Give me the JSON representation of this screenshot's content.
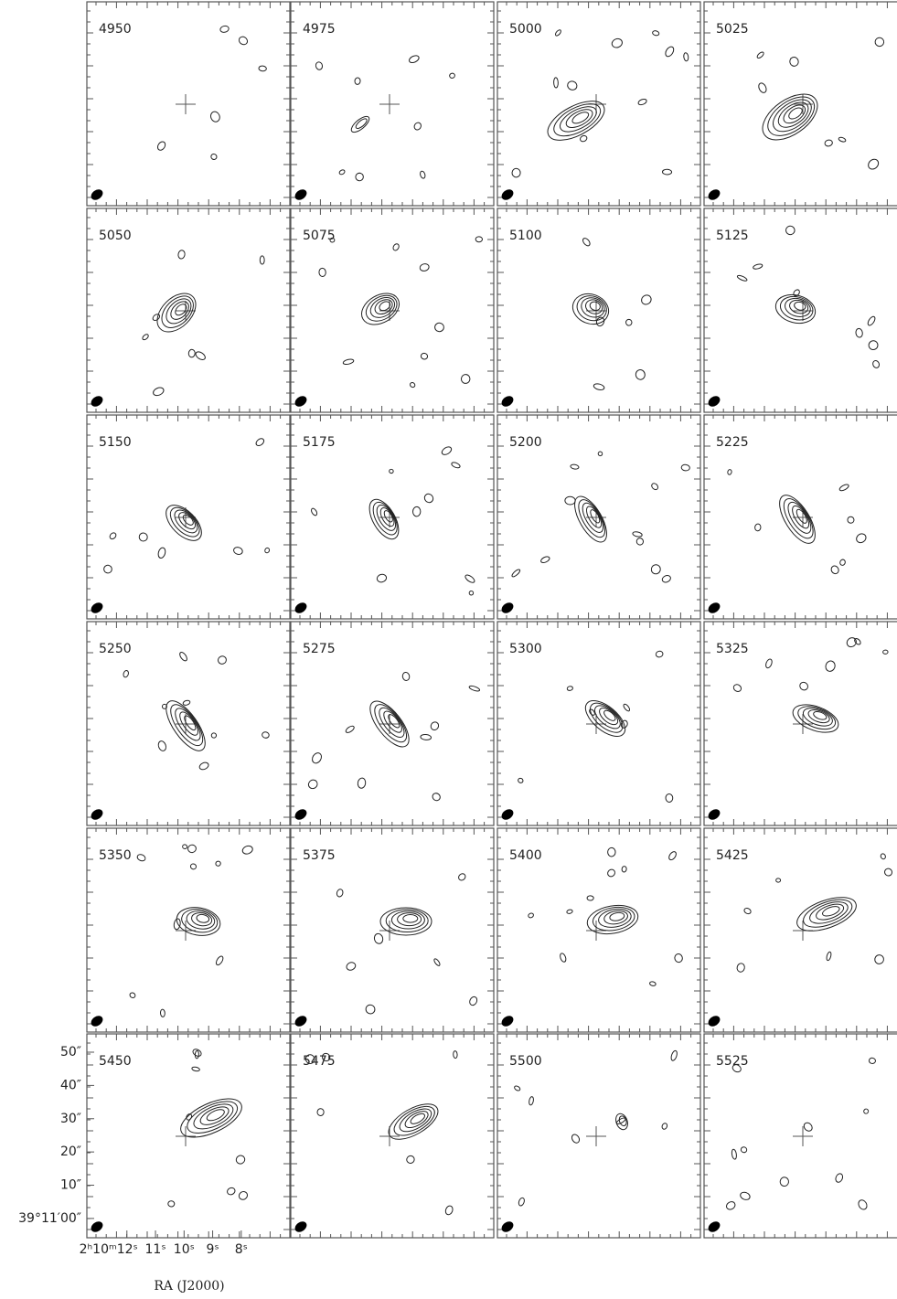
{
  "chart_data": {
    "type": "contour",
    "channels": [
      "4950",
      "4975",
      "5000",
      "5025",
      "5050",
      "5075",
      "5100",
      "5125",
      "5150",
      "5175",
      "5200",
      "5225",
      "5250",
      "5275",
      "5300",
      "5325",
      "5350",
      "5375",
      "5400",
      "5425",
      "5450",
      "5475",
      "5500",
      "5525"
    ],
    "xlabel": "RA (J2000)",
    "xlim": [
      13.4,
      6.3
    ],
    "xticks": [
      {
        "value": 12,
        "label": "2ʰ10ᵐ12ˢ"
      },
      {
        "value": 11,
        "label": "11ˢ"
      },
      {
        "value": 10,
        "label": "10ˢ"
      },
      {
        "value": 9,
        "label": "9ˢ"
      },
      {
        "value": 8,
        "label": "8ˢ"
      }
    ],
    "ylim": [
      -5.8,
      55.5
    ],
    "yticks": [
      {
        "value": 50,
        "label": "50″"
      },
      {
        "value": 40,
        "label": "40″"
      },
      {
        "value": 30,
        "label": "30″"
      },
      {
        "value": 20,
        "label": "20″"
      },
      {
        "value": 10,
        "label": "10″"
      },
      {
        "value": 0,
        "label": "39°11′00″"
      }
    ]
  }
}
